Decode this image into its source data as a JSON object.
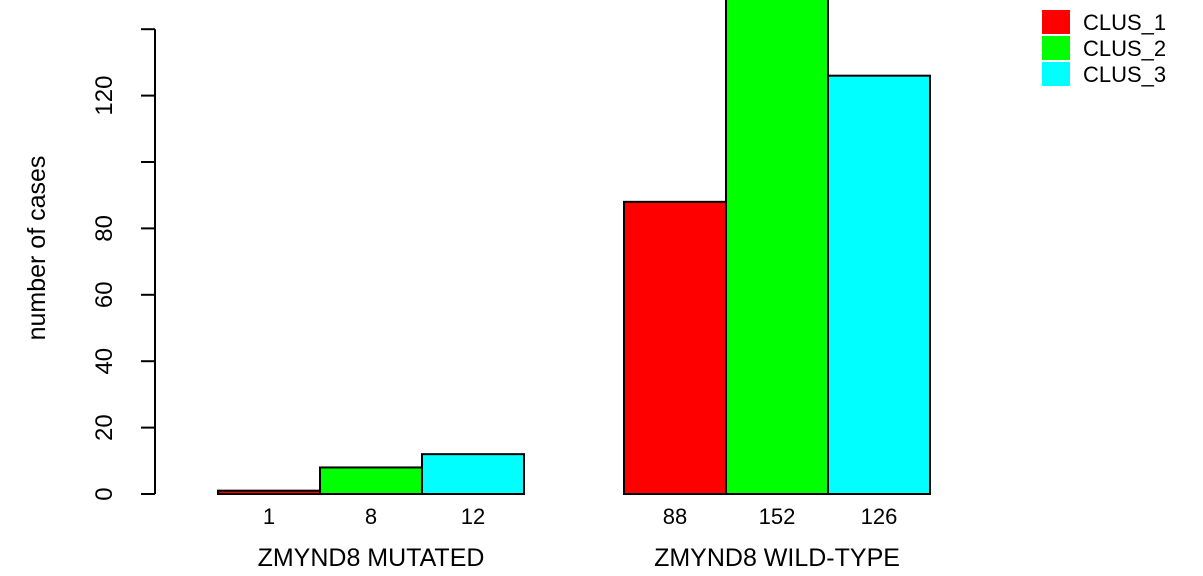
{
  "chart_data": {
    "type": "bar",
    "ylabel": "number of cases",
    "categories": [
      "ZMYND8 MUTATED",
      "ZMYND8 WILD-TYPE"
    ],
    "series": [
      {
        "name": "CLUS_1",
        "color": "#ff0000",
        "values": [
          1,
          88
        ]
      },
      {
        "name": "CLUS_2",
        "color": "#00ff00",
        "values": [
          8,
          152
        ]
      },
      {
        "name": "CLUS_3",
        "color": "#00ffff",
        "values": [
          12,
          126
        ]
      }
    ],
    "y_ticks": [
      0,
      20,
      40,
      60,
      80,
      100,
      120,
      140
    ],
    "y_tick_labels": [
      "0",
      "20",
      "40",
      "60",
      "80",
      "",
      "120",
      ""
    ],
    "data_labels": [
      [
        "1",
        "8",
        "12"
      ],
      [
        "88",
        "152",
        "126"
      ]
    ],
    "legend_position": "top-right"
  }
}
